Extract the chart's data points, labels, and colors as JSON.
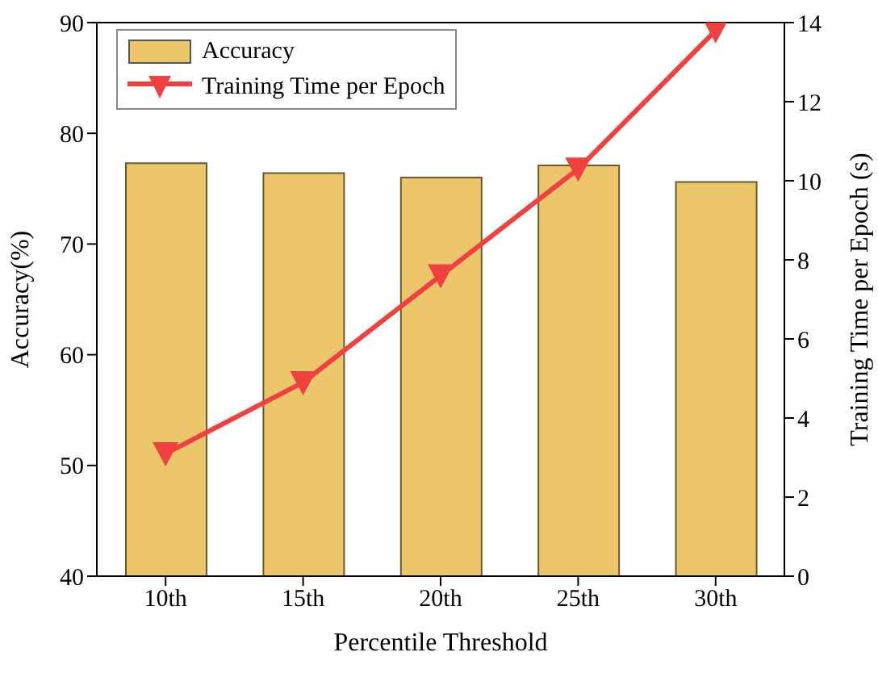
{
  "chart_data": {
    "type": "bar",
    "xlabel": "Percentile Threshold",
    "ylabel": "Accuracy(%)",
    "y2label": "Training Time per Epoch (s)",
    "categories": [
      "10th",
      "15th",
      "20th",
      "25th",
      "30th"
    ],
    "series": [
      {
        "name": "Accuracy",
        "color": "#ecc66b",
        "values": [
          77.3,
          76.4,
          76.0,
          77.1,
          75.6
        ]
      },
      {
        "name": "Training Time per Epoch",
        "type": "line",
        "axis": "y2",
        "color": "#f04040",
        "marker": "triangle",
        "values": [
          3.1,
          4.9,
          7.6,
          10.3,
          13.8
        ]
      }
    ],
    "ylim": [
      40,
      90
    ],
    "yticks": [
      40,
      50,
      60,
      70,
      80,
      90
    ],
    "y2lim": [
      0,
      14
    ],
    "y2ticks": [
      0,
      2,
      4,
      6,
      8,
      10,
      12,
      14
    ],
    "legend": "top left"
  }
}
